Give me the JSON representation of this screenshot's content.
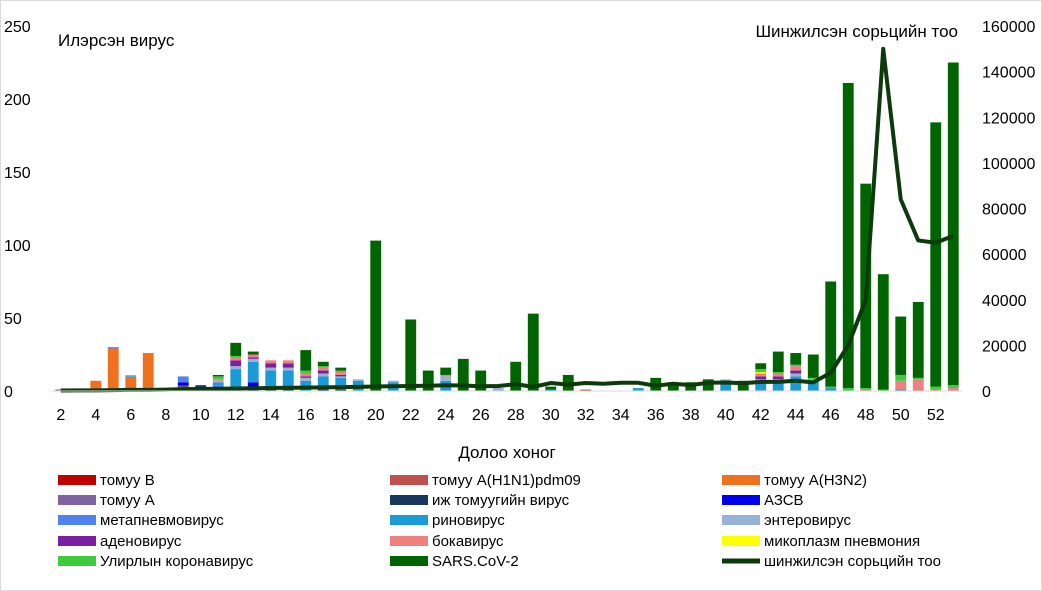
{
  "chart_data": {
    "type": "bar",
    "stacked": true,
    "title": "",
    "left_axis_label": "Илэрсэн вирус",
    "right_axis_label": "Шинжилсэн сорьцийн тоо",
    "xlabel": "Долоо хоног",
    "ylim": [
      0,
      250
    ],
    "y_ticks": [
      0,
      50,
      100,
      150,
      200,
      250
    ],
    "y2lim": [
      0,
      160000
    ],
    "y2_ticks": [
      0,
      20000,
      40000,
      60000,
      80000,
      100000,
      120000,
      140000,
      160000
    ],
    "weeks": [
      2,
      3,
      4,
      5,
      6,
      7,
      8,
      9,
      10,
      11,
      12,
      13,
      14,
      15,
      16,
      17,
      18,
      19,
      20,
      21,
      22,
      23,
      24,
      25,
      26,
      27,
      28,
      29,
      30,
      31,
      32,
      33,
      34,
      35,
      36,
      37,
      38,
      39,
      40,
      41,
      42,
      43,
      44,
      45,
      46,
      47,
      48,
      49,
      50,
      51,
      52,
      53
    ],
    "x_tick_labels": [
      "2",
      "4",
      "6",
      "8",
      "10",
      "12",
      "14",
      "16",
      "18",
      "20",
      "22",
      "24",
      "26",
      "28",
      "30",
      "32",
      "34",
      "36",
      "38",
      "40",
      "42",
      "44",
      "46",
      "48",
      "50",
      "52"
    ],
    "grid": false,
    "legend_position": "bottom",
    "series": [
      {
        "name": "томуу В",
        "color": "#c00000",
        "kind": "bar",
        "values": [
          0,
          0,
          0,
          0,
          0,
          0,
          0,
          0,
          0,
          0,
          0,
          0,
          0,
          0,
          0,
          0,
          0,
          0,
          0,
          0,
          0,
          0,
          0,
          0,
          0,
          0,
          0,
          0,
          0,
          0,
          0,
          0,
          0,
          0,
          0,
          0,
          0,
          0,
          0,
          0,
          0,
          0,
          0,
          0,
          0,
          0,
          0,
          0,
          0,
          0,
          0,
          0
        ]
      },
      {
        "name": "томуу A(H1N1)pdm09",
        "color": "#c0504d",
        "kind": "bar",
        "values": [
          0,
          0,
          0,
          0,
          0,
          0,
          0,
          0,
          0,
          0,
          0,
          0,
          0,
          0,
          0,
          0,
          0,
          0,
          0,
          0,
          0,
          0,
          0,
          0,
          0,
          0,
          0,
          0,
          0,
          0,
          1,
          0,
          0,
          0,
          0,
          0,
          0,
          0,
          0,
          0,
          0,
          0,
          0,
          0,
          0,
          0,
          0,
          0,
          0,
          0,
          0,
          0
        ]
      },
      {
        "name": "томуу A(H3N2)",
        "color": "#f07020",
        "kind": "bar",
        "values": [
          0,
          0,
          7,
          29,
          9,
          26,
          0,
          3,
          0,
          0,
          0,
          0,
          0,
          0,
          0,
          0,
          0,
          0,
          0,
          0,
          0,
          0,
          0,
          0,
          0,
          0,
          0,
          0,
          0,
          0,
          0,
          0,
          0,
          0,
          0,
          0,
          0,
          0,
          0,
          0,
          0,
          0,
          0,
          0,
          0,
          0,
          0,
          0,
          0,
          0,
          0,
          0
        ]
      },
      {
        "name": "томуу А",
        "color": "#8064a2",
        "kind": "bar",
        "values": [
          1,
          1,
          0,
          1,
          0,
          0,
          0,
          0,
          0,
          0,
          0,
          0,
          0,
          0,
          0,
          0,
          0,
          0,
          0,
          0,
          0,
          0,
          0,
          0,
          0,
          0,
          0,
          0,
          0,
          0,
          0,
          0,
          0,
          0,
          0,
          0,
          0,
          0,
          0,
          0,
          0,
          0,
          0,
          0,
          0,
          0,
          0,
          0,
          0,
          0,
          0,
          0
        ]
      },
      {
        "name": "иж томуугийн вирус",
        "color": "#17375e",
        "kind": "bar",
        "values": [
          0,
          0,
          0,
          0,
          0,
          0,
          1,
          1,
          4,
          1,
          2,
          3,
          1,
          1,
          0,
          1,
          1,
          0,
          0,
          0,
          0,
          0,
          0,
          0,
          0,
          0,
          0,
          0,
          0,
          0,
          0,
          0,
          0,
          0,
          0,
          0,
          0,
          0,
          0,
          0,
          0,
          0,
          0,
          0,
          0,
          0,
          0,
          0,
          0,
          0,
          0,
          0
        ]
      },
      {
        "name": "АЗСВ",
        "color": "#0000ee",
        "kind": "bar",
        "values": [
          0,
          0,
          0,
          0,
          0,
          0,
          1,
          2,
          0,
          2,
          0,
          3,
          0,
          0,
          0,
          0,
          0,
          0,
          0,
          0,
          0,
          0,
          0,
          0,
          0,
          0,
          0,
          0,
          0,
          0,
          0,
          0,
          0,
          0,
          0,
          0,
          0,
          0,
          0,
          0,
          0,
          0,
          0,
          0,
          0,
          0,
          0,
          0,
          0,
          0,
          0,
          0
        ]
      },
      {
        "name": "метапневмовирус",
        "color": "#4f81f0",
        "kind": "bar",
        "values": [
          0,
          0,
          0,
          0,
          0,
          0,
          0,
          4,
          0,
          1,
          0,
          0,
          0,
          0,
          0,
          0,
          0,
          0,
          0,
          0,
          0,
          0,
          0,
          0,
          0,
          0,
          0,
          0,
          0,
          0,
          0,
          0,
          0,
          0,
          0,
          0,
          0,
          0,
          0,
          0,
          1,
          0,
          0,
          0,
          0,
          0,
          0,
          0,
          0,
          0,
          0,
          0
        ]
      },
      {
        "name": "риновирус",
        "color": "#1a9ad6",
        "kind": "bar",
        "values": [
          0,
          0,
          0,
          0,
          1,
          0,
          0,
          0,
          0,
          2,
          13,
          14,
          13,
          13,
          7,
          9,
          8,
          7,
          0,
          6,
          0,
          0,
          7,
          0,
          0,
          0,
          0,
          0,
          1,
          0,
          0,
          0,
          0,
          2,
          0,
          0,
          0,
          0,
          7,
          0,
          5,
          7,
          10,
          7,
          2,
          0,
          0,
          0,
          1,
          0,
          0,
          0
        ]
      },
      {
        "name": "энтеровирус",
        "color": "#95b3d7",
        "kind": "bar",
        "values": [
          0,
          0,
          0,
          0,
          1,
          0,
          0,
          0,
          0,
          1,
          2,
          2,
          2,
          2,
          2,
          2,
          1,
          1,
          0,
          1,
          0,
          0,
          3,
          0,
          0,
          2,
          0,
          0,
          0,
          0,
          0,
          0,
          0,
          0,
          0,
          0,
          0,
          0,
          1,
          0,
          2,
          1,
          2,
          1,
          0,
          0,
          0,
          0,
          0,
          0,
          0,
          0
        ]
      },
      {
        "name": "аденовирус",
        "color": "#7b1fa2",
        "kind": "bar",
        "values": [
          0,
          0,
          0,
          0,
          0,
          0,
          0,
          0,
          0,
          0,
          4,
          1,
          3,
          3,
          1,
          2,
          1,
          0,
          0,
          0,
          0,
          0,
          0,
          0,
          0,
          0,
          0,
          0,
          0,
          0,
          0,
          0,
          0,
          0,
          0,
          0,
          0,
          0,
          0,
          0,
          2,
          2,
          2,
          0,
          0,
          0,
          0,
          0,
          0,
          0,
          0,
          0
        ]
      },
      {
        "name": "бокавирус",
        "color": "#f08080",
        "kind": "bar",
        "values": [
          0,
          0,
          0,
          0,
          0,
          0,
          0,
          0,
          0,
          1,
          2,
          2,
          2,
          2,
          2,
          2,
          2,
          0,
          0,
          0,
          0,
          0,
          1,
          0,
          0,
          0,
          0,
          0,
          0,
          0,
          0,
          0,
          0,
          0,
          0,
          0,
          0,
          0,
          0,
          0,
          2,
          2,
          3,
          0,
          0,
          0,
          1,
          0,
          6,
          8,
          1,
          2
        ]
      },
      {
        "name": "микоплазм пневмония",
        "color": "#ffff00",
        "kind": "bar",
        "values": [
          0,
          0,
          0,
          0,
          0,
          0,
          0,
          0,
          0,
          0,
          0,
          0,
          0,
          0,
          0,
          0,
          0,
          0,
          0,
          0,
          0,
          0,
          0,
          0,
          0,
          0,
          0,
          0,
          0,
          0,
          0,
          0,
          0,
          0,
          0,
          0,
          0,
          0,
          0,
          0,
          1,
          0,
          0,
          0,
          0,
          0,
          0,
          0,
          0,
          0,
          0,
          0
        ]
      },
      {
        "name": "Улирлын коронавирус",
        "color": "#3dcc3d",
        "kind": "bar",
        "values": [
          0,
          0,
          0,
          0,
          0,
          0,
          0,
          0,
          0,
          2,
          1,
          0,
          0,
          0,
          2,
          1,
          1,
          0,
          0,
          0,
          0,
          0,
          0,
          0,
          0,
          0,
          0,
          0,
          0,
          0,
          0,
          0,
          0,
          0,
          0,
          0,
          0,
          0,
          0,
          0,
          2,
          1,
          1,
          1,
          1,
          2,
          1,
          1,
          4,
          1,
          2,
          2
        ]
      },
      {
        "name": "SARS.CoV-2",
        "color": "#006400",
        "kind": "bar",
        "values": [
          0,
          0,
          0,
          0,
          0,
          0,
          0,
          0,
          0,
          1,
          9,
          2,
          0,
          0,
          14,
          3,
          2,
          0,
          103,
          0,
          49,
          14,
          5,
          22,
          14,
          0,
          20,
          53,
          2,
          11,
          0,
          0,
          0,
          0,
          9,
          6,
          6,
          8,
          0,
          7,
          4,
          14,
          8,
          16,
          72,
          209,
          140,
          79,
          40,
          52,
          181,
          221
        ]
      },
      {
        "name": "шинжилсэн сорьцийн тоо",
        "color": "#0c3a0c",
        "kind": "line",
        "axis": "right",
        "values": [
          200,
          300,
          300,
          400,
          500,
          500,
          600,
          800,
          900,
          1000,
          1100,
          1200,
          1300,
          1400,
          1500,
          1600,
          1700,
          1800,
          2000,
          2100,
          2200,
          2300,
          2500,
          2400,
          2100,
          2200,
          3000,
          1800,
          3500,
          2800,
          3500,
          3200,
          3600,
          3600,
          2300,
          3200,
          2600,
          3600,
          3700,
          3400,
          4000,
          4000,
          4500,
          3800,
          8000,
          20000,
          40000,
          150000,
          84000,
          66000,
          65000,
          68000
        ]
      }
    ]
  }
}
